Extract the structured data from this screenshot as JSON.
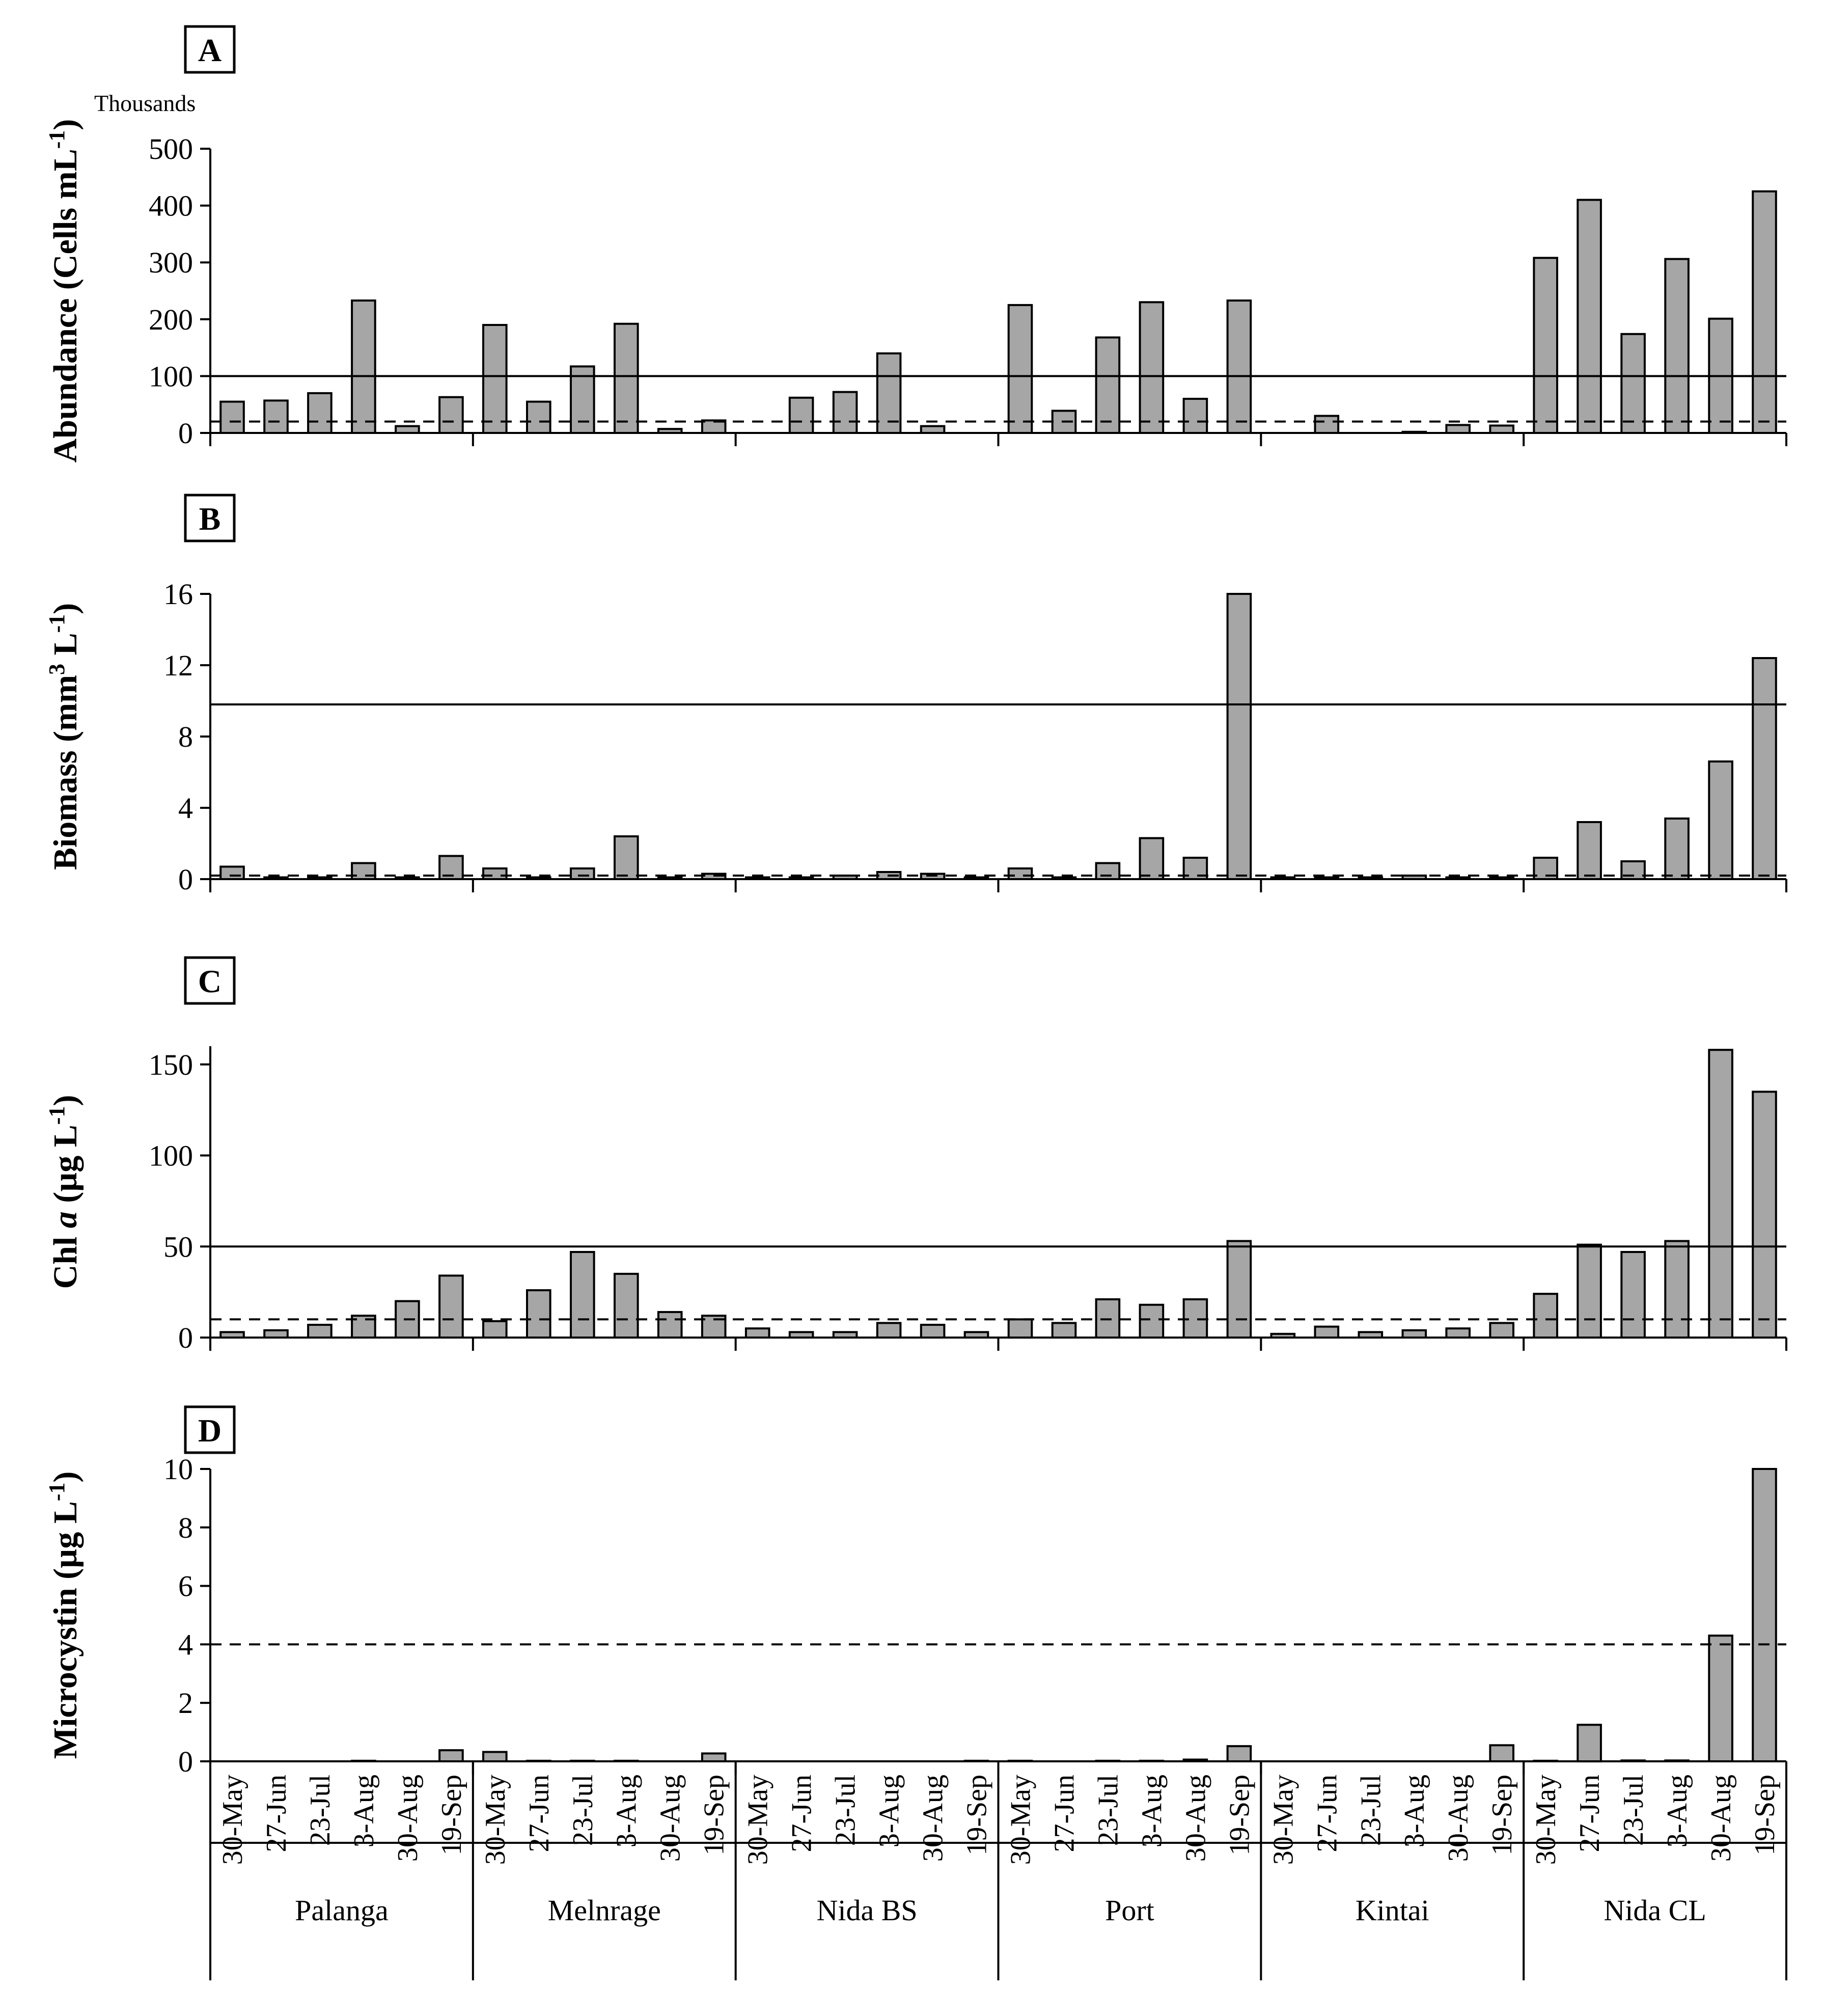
{
  "chart_data": {
    "type": "bar",
    "sites": [
      "Palanga",
      "Melnrage",
      "Nida BS",
      "Port",
      "Kintai",
      "Nida CL"
    ],
    "dates": [
      "30-May",
      "27-Jun",
      "23-Jul",
      "3-Aug",
      "30-Aug",
      "19-Sep"
    ],
    "panels": [
      {
        "letter": "A",
        "ylabel_main": "Abundance (Cells mL",
        "ylabel_sup": "-1",
        "ylabel_end": ")",
        "units_note": "Thousands",
        "ylim": [
          0,
          500
        ],
        "yticks": [
          0,
          100,
          200,
          300,
          400,
          500
        ],
        "solid_ref": 100,
        "dashed_ref": 20,
        "values": [
          [
            55,
            57,
            70,
            233,
            12,
            63
          ],
          [
            190,
            55,
            117,
            192,
            7,
            22
          ],
          [
            0,
            62,
            72,
            140,
            12,
            0
          ],
          [
            225,
            39,
            168,
            230,
            60,
            233
          ],
          [
            0,
            30,
            0,
            2,
            14,
            13
          ],
          [
            308,
            410,
            174,
            306,
            201,
            425
          ]
        ]
      },
      {
        "letter": "B",
        "ylabel_main": "Biomass (mm",
        "ylabel_sup": "3",
        "ylabel_mid": " L",
        "ylabel_sup2": "-1",
        "ylabel_end": ")",
        "ylim": [
          0,
          16
        ],
        "yticks": [
          0,
          4,
          8,
          12,
          16
        ],
        "solid_ref": 9.8,
        "dashed_ref": 0.2,
        "values": [
          [
            0.7,
            0.1,
            0.1,
            0.9,
            0.1,
            1.3
          ],
          [
            0.6,
            0.1,
            0.6,
            2.4,
            0.1,
            0.3
          ],
          [
            0.1,
            0.1,
            0.2,
            0.4,
            0.3,
            0.1
          ],
          [
            0.6,
            0.1,
            0.9,
            2.3,
            1.2,
            16
          ],
          [
            0.1,
            0.1,
            0.1,
            0.2,
            0.1,
            0.1
          ],
          [
            1.2,
            3.2,
            1.0,
            3.4,
            6.6,
            12.4
          ]
        ]
      },
      {
        "letter": "C",
        "ylabel_main": "Chl ",
        "ylabel_italic": "a",
        "ylabel_rest": " (µg L",
        "ylabel_sup": "-1",
        "ylabel_end": ")",
        "ylim": [
          0,
          160
        ],
        "yticks": [
          0,
          50,
          100,
          150
        ],
        "solid_ref": 50,
        "dashed_ref": 10,
        "values": [
          [
            3,
            4,
            7,
            12,
            20,
            34
          ],
          [
            9,
            26,
            47,
            35,
            14,
            12
          ],
          [
            5,
            3,
            3,
            8,
            7,
            3
          ],
          [
            10,
            8,
            21,
            18,
            21,
            53
          ],
          [
            2,
            6,
            3,
            4,
            5,
            8
          ],
          [
            24,
            51,
            47,
            53,
            158,
            135
          ]
        ]
      },
      {
        "letter": "D",
        "ylabel_main": "Microcystin (µg L",
        "ylabel_sup": "-1",
        "ylabel_end": ")",
        "ylim": [
          0,
          10
        ],
        "yticks": [
          0,
          2,
          4,
          6,
          8,
          10
        ],
        "solid_ref": null,
        "dashed_ref": 4,
        "values": [
          [
            0,
            0,
            0,
            0.02,
            0,
            0.38
          ],
          [
            0.32,
            0.02,
            0.02,
            0.02,
            0,
            0.27
          ],
          [
            0,
            0,
            0,
            0,
            0,
            0.02
          ],
          [
            0.02,
            0,
            0.02,
            0.02,
            0.06,
            0.52
          ],
          [
            0,
            0,
            0,
            0,
            0,
            0.55
          ],
          [
            0.02,
            1.25,
            0.03,
            0.03,
            4.3,
            10
          ]
        ]
      }
    ]
  }
}
